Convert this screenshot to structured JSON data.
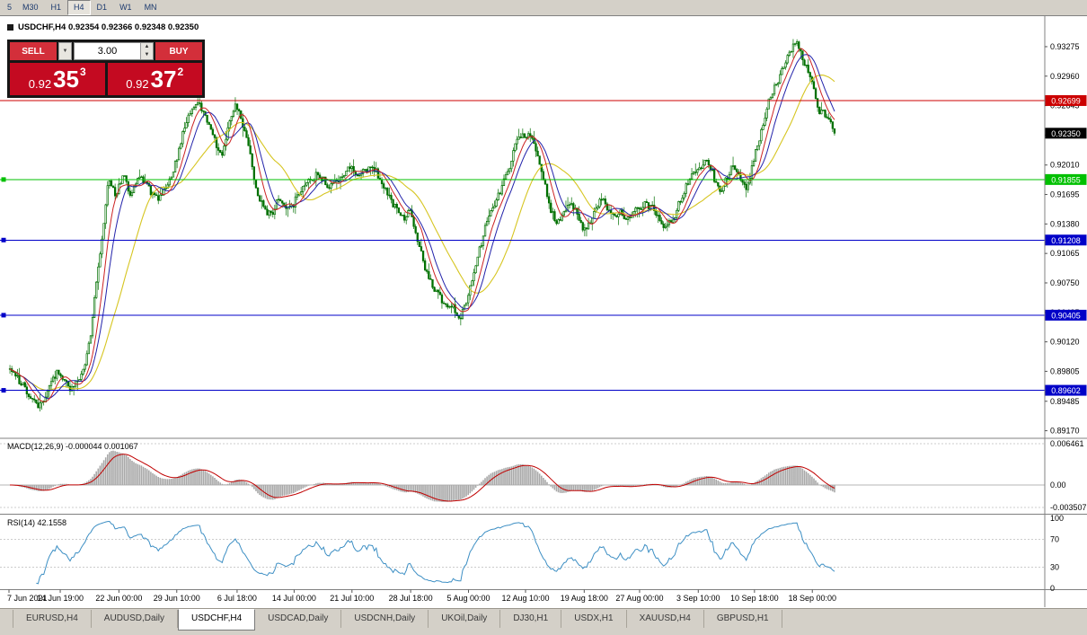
{
  "toolbar": {
    "timeframes": [
      "5",
      "M30",
      "H1",
      "H4",
      "D1",
      "W1",
      "MN"
    ],
    "active": "H4"
  },
  "header": {
    "symbol_info": "USDCHF,H4 0.92354 0.92366 0.92348 0.92350"
  },
  "trade": {
    "sell_label": "SELL",
    "buy_label": "BUY",
    "volume": "3.00",
    "sell_price": {
      "prefix": "0.92",
      "main": "35",
      "sup": "3"
    },
    "buy_price": {
      "prefix": "0.92",
      "main": "37",
      "sup": "2"
    }
  },
  "icons": {
    "dropdown_arrow": "▼",
    "spin_up": "▲",
    "spin_down": "▼"
  },
  "indicators": {
    "macd_label": "MACD(12,26,9) -0.000044 0.001067",
    "rsi_label": "RSI(14) 42.1558"
  },
  "tabs": [
    {
      "label": "EURUSD,H4",
      "active": false
    },
    {
      "label": "AUDUSD,Daily",
      "active": false
    },
    {
      "label": "USDCHF,H4",
      "active": true
    },
    {
      "label": "USDCAD,Daily",
      "active": false
    },
    {
      "label": "USDCNH,Daily",
      "active": false
    },
    {
      "label": "UKOil,Daily",
      "active": false
    },
    {
      "label": "DJ30,H1",
      "active": false
    },
    {
      "label": "USDX,H1",
      "active": false
    },
    {
      "label": "XAUUSD,H4",
      "active": false
    },
    {
      "label": "GBPUSD,H1",
      "active": false
    }
  ],
  "chart_data": {
    "type": "candlestick",
    "symbol": "USDCHF",
    "period": "H4",
    "ohlc": {
      "open": "0.92354",
      "high": "0.92366",
      "low": "0.92348",
      "close": "0.92350"
    },
    "price_ticks": [
      "0.93275",
      "0.92960",
      "0.92645",
      "0.92330",
      "0.92010",
      "0.91695",
      "0.91380",
      "0.91065",
      "0.90750",
      "0.90435",
      "0.90120",
      "0.89805",
      "0.89485",
      "0.89170"
    ],
    "hlines": [
      {
        "price": "0.92699",
        "color": "#cc0000",
        "handle": false
      },
      {
        "price": "0.91855",
        "color": "#00c000",
        "handle": true
      },
      {
        "price": "0.91208",
        "color": "#0000c8",
        "handle": true
      },
      {
        "price": "0.90405",
        "color": "#0000c8",
        "handle": true
      },
      {
        "price": "0.89602",
        "color": "#0000c8",
        "handle": true
      }
    ],
    "bid": {
      "price": "0.92350",
      "color": "#000000"
    },
    "macd_levels": [
      "0.006461",
      "0.00",
      "-0.003507"
    ],
    "rsi_levels": [
      "100",
      "70",
      "30",
      "0"
    ],
    "time_labels": [
      {
        "t": "7 Jun 2021",
        "f": 0.0
      },
      {
        "t": "14 Jun 19:00",
        "f": 0.062
      },
      {
        "t": "22 Jun 00:00",
        "f": 0.133
      },
      {
        "t": "29 Jun 10:00",
        "f": 0.203
      },
      {
        "t": "6 Jul 18:00",
        "f": 0.276
      },
      {
        "t": "14 Jul 00:00",
        "f": 0.345
      },
      {
        "t": "21 Jul 10:00",
        "f": 0.415
      },
      {
        "t": "28 Jul 18:00",
        "f": 0.486
      },
      {
        "t": "5 Aug 00:00",
        "f": 0.556
      },
      {
        "t": "12 Aug 10:00",
        "f": 0.625
      },
      {
        "t": "19 Aug 18:00",
        "f": 0.696
      },
      {
        "t": "27 Aug 00:00",
        "f": 0.763
      },
      {
        "t": "3 Sep 10:00",
        "f": 0.834
      },
      {
        "t": "10 Sep 18:00",
        "f": 0.902
      },
      {
        "t": "18 Sep 00:00",
        "f": 0.972
      }
    ],
    "candle_count": 440,
    "seed": 11,
    "last_close": 0.9235,
    "anchors": [
      [
        0.0,
        0.8983
      ],
      [
        0.012,
        0.8968
      ],
      [
        0.03,
        0.8944
      ],
      [
        0.042,
        0.8952
      ],
      [
        0.052,
        0.8986
      ],
      [
        0.062,
        0.897
      ],
      [
        0.075,
        0.8962
      ],
      [
        0.088,
        0.898
      ],
      [
        0.098,
        0.9032
      ],
      [
        0.108,
        0.9112
      ],
      [
        0.118,
        0.9188
      ],
      [
        0.128,
        0.917
      ],
      [
        0.136,
        0.9196
      ],
      [
        0.146,
        0.9164
      ],
      [
        0.156,
        0.9193
      ],
      [
        0.166,
        0.918
      ],
      [
        0.176,
        0.9163
      ],
      [
        0.186,
        0.9172
      ],
      [
        0.196,
        0.9192
      ],
      [
        0.206,
        0.923
      ],
      [
        0.216,
        0.9262
      ],
      [
        0.226,
        0.9271
      ],
      [
        0.236,
        0.9252
      ],
      [
        0.246,
        0.9222
      ],
      [
        0.256,
        0.9212
      ],
      [
        0.266,
        0.9252
      ],
      [
        0.274,
        0.9272
      ],
      [
        0.282,
        0.9242
      ],
      [
        0.292,
        0.92
      ],
      [
        0.302,
        0.9162
      ],
      [
        0.312,
        0.9148
      ],
      [
        0.324,
        0.9163
      ],
      [
        0.336,
        0.9149
      ],
      [
        0.348,
        0.917
      ],
      [
        0.36,
        0.9184
      ],
      [
        0.374,
        0.9191
      ],
      [
        0.388,
        0.9176
      ],
      [
        0.4,
        0.9186
      ],
      [
        0.412,
        0.9201
      ],
      [
        0.424,
        0.9192
      ],
      [
        0.436,
        0.9198
      ],
      [
        0.448,
        0.9186
      ],
      [
        0.46,
        0.9166
      ],
      [
        0.472,
        0.914
      ],
      [
        0.484,
        0.9152
      ],
      [
        0.492,
        0.912
      ],
      [
        0.502,
        0.9088
      ],
      [
        0.512,
        0.9066
      ],
      [
        0.524,
        0.905
      ],
      [
        0.536,
        0.9044
      ],
      [
        0.546,
        0.9038
      ],
      [
        0.556,
        0.9062
      ],
      [
        0.566,
        0.9102
      ],
      [
        0.576,
        0.9136
      ],
      [
        0.586,
        0.9162
      ],
      [
        0.596,
        0.918
      ],
      [
        0.606,
        0.9206
      ],
      [
        0.616,
        0.9228
      ],
      [
        0.626,
        0.9236
      ],
      [
        0.636,
        0.9222
      ],
      [
        0.646,
        0.918
      ],
      [
        0.654,
        0.915
      ],
      [
        0.662,
        0.9136
      ],
      [
        0.67,
        0.9156
      ],
      [
        0.678,
        0.9168
      ],
      [
        0.686,
        0.9152
      ],
      [
        0.696,
        0.913
      ],
      [
        0.706,
        0.9148
      ],
      [
        0.716,
        0.9161
      ],
      [
        0.726,
        0.9149
      ],
      [
        0.736,
        0.9156
      ],
      [
        0.746,
        0.9143
      ],
      [
        0.756,
        0.9151
      ],
      [
        0.766,
        0.9161
      ],
      [
        0.776,
        0.9156
      ],
      [
        0.786,
        0.9143
      ],
      [
        0.796,
        0.9133
      ],
      [
        0.806,
        0.9153
      ],
      [
        0.816,
        0.9176
      ],
      [
        0.826,
        0.9188
      ],
      [
        0.836,
        0.9202
      ],
      [
        0.844,
        0.9214
      ],
      [
        0.852,
        0.9186
      ],
      [
        0.86,
        0.9166
      ],
      [
        0.868,
        0.919
      ],
      [
        0.876,
        0.9204
      ],
      [
        0.884,
        0.9182
      ],
      [
        0.892,
        0.9172
      ],
      [
        0.9,
        0.9202
      ],
      [
        0.908,
        0.9236
      ],
      [
        0.916,
        0.9262
      ],
      [
        0.926,
        0.9284
      ],
      [
        0.936,
        0.9302
      ],
      [
        0.946,
        0.9324
      ],
      [
        0.954,
        0.9331
      ],
      [
        0.962,
        0.931
      ],
      [
        0.972,
        0.9282
      ],
      [
        0.982,
        0.9258
      ],
      [
        0.991,
        0.9246
      ],
      [
        1.0,
        0.9236
      ]
    ],
    "colors": {
      "bar": "#007000",
      "up_fill": "#ffffff",
      "ma_fast": "#cc2222",
      "ma_mid": "#2222aa",
      "ma_slow": "#d6c520",
      "macd_hist": "#a8a8a8",
      "macd_signal": "#c00000",
      "rsi": "#3d8fc4"
    }
  }
}
